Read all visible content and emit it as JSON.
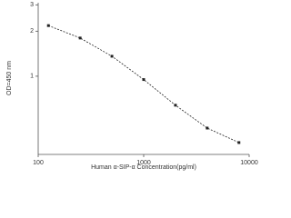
{
  "chart_data": {
    "type": "line",
    "x_label": "Human α-SIP-α Concentration(pg/ml)",
    "y_label": "OD=450 nm",
    "x": [
      125,
      250,
      500,
      1000,
      2000,
      4000,
      8000
    ],
    "series": [
      {
        "name": "OD",
        "color": "#222222",
        "values": [
          2.18,
          1.8,
          1.36,
          0.95,
          0.64,
          0.45,
          0.36
        ]
      }
    ],
    "xlim": [
      100,
      10000
    ],
    "xticks": [
      100,
      1000,
      10000
    ],
    "x_log": true,
    "ylim": [
      0.3,
      3.1
    ],
    "yticks": [
      1,
      2,
      3
    ],
    "y_log": true
  }
}
